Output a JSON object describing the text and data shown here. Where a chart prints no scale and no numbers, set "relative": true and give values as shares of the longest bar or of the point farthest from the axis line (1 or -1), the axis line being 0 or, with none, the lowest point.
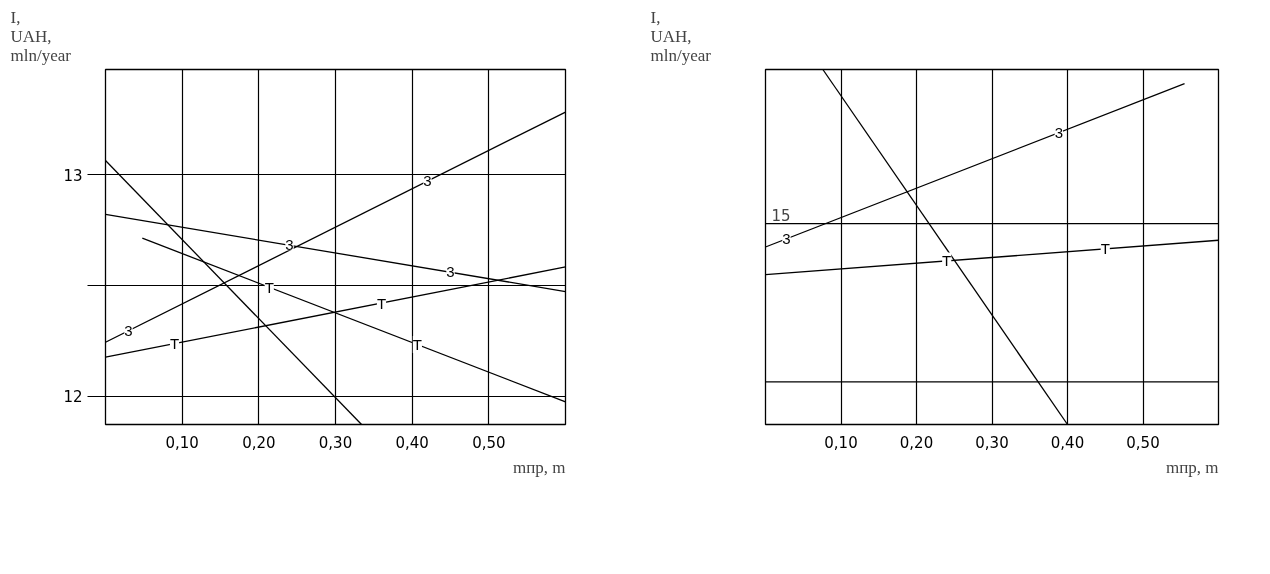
{
  "chart_data": [
    {
      "type": "line",
      "xlabel": "mпр, m",
      "ylabel": "I,\nUAH,\nmln/year",
      "xlim": [
        0,
        0.6
      ],
      "ylim": [
        11.873,
        13.475
      ],
      "xticks": [
        {
          "value": 0.1,
          "label": "0,10"
        },
        {
          "value": 0.2,
          "label": "0,20"
        },
        {
          "value": 0.3,
          "label": "0,30"
        },
        {
          "value": 0.4,
          "label": "0,40"
        },
        {
          "value": 0.5,
          "label": "0,50"
        }
      ],
      "yticks": [
        12,
        {
          "value": 12.5,
          "label": null
        },
        13
      ],
      "grid": true,
      "series": [
        {
          "color": "#000000",
          "x": [
            0,
            0.334
          ],
          "values": [
            13.064,
            11.873
          ]
        },
        {
          "name": "3",
          "color": "#000000",
          "x": [
            0,
            0.6
          ],
          "values": [
            12.244,
            13.283
          ]
        },
        {
          "name": "3",
          "color": "#000000",
          "x": [
            0,
            0.6
          ],
          "values": [
            12.821,
            12.473
          ]
        },
        {
          "name": "T",
          "color": "#000000",
          "x": [
            0.048,
            0.6
          ],
          "values": [
            12.714,
            11.975
          ]
        },
        {
          "name": "T",
          "color": "#000000",
          "x": [
            0,
            0.6
          ],
          "values": [
            12.177,
            12.584
          ]
        }
      ]
    },
    {
      "type": "line",
      "xlabel": "mпр, m",
      "ylabel": "I,\nUAH,\nmln/year",
      "relative": true,
      "xlim": [
        0,
        0.6
      ],
      "xticks": [
        {
          "value": 0.1,
          "label": "0,10"
        },
        {
          "value": 0.2,
          "label": "0,20"
        },
        {
          "value": 0.3,
          "label": "0,30"
        },
        {
          "value": 0.4,
          "label": "0,40"
        },
        {
          "value": 0.5,
          "label": "0,50"
        }
      ],
      "grid": "x",
      "ref_lines": [
        {
          "axis": "y",
          "value": 0.566,
          "label": null
        },
        {
          "axis": "y",
          "value": 0.12,
          "label": null
        }
      ],
      "annotations": [
        {
          "text": "15",
          "x": 0,
          "y": 0.566
        }
      ],
      "series": [
        {
          "color": "#000000",
          "x": [
            0.076,
            0.4
          ],
          "values": [
            1,
            0
          ]
        },
        {
          "name": "3",
          "color": "#000000",
          "x": [
            0,
            0.555
          ],
          "values": [
            0.5,
            0.96
          ]
        },
        {
          "name": "T",
          "color": "#000000",
          "x": [
            0,
            0.6
          ],
          "values": [
            0.422,
            0.519
          ]
        }
      ]
    }
  ]
}
